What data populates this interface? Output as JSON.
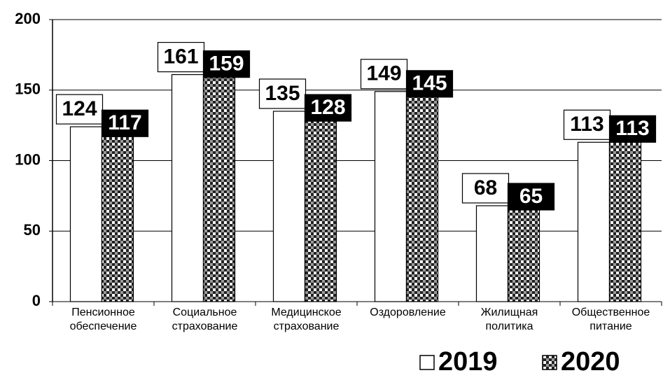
{
  "chart_data": {
    "type": "bar",
    "categories": [
      "Пенсионное обеспечение",
      "Социальное страхование",
      "Медицинское страхование",
      "Оздоровление",
      "Жилищная политика",
      "Общественное питание"
    ],
    "series": [
      {
        "name": "2019",
        "color": "#ffffff",
        "values": [
          124,
          161,
          135,
          149,
          68,
          113
        ]
      },
      {
        "name": "2020",
        "color": "#808080",
        "values": [
          117,
          159,
          128,
          145,
          65,
          113
        ]
      }
    ],
    "ylim": [
      0,
      200
    ],
    "yticks": [
      0,
      50,
      100,
      150,
      200
    ],
    "grid": true,
    "legend": "bottom-right"
  }
}
